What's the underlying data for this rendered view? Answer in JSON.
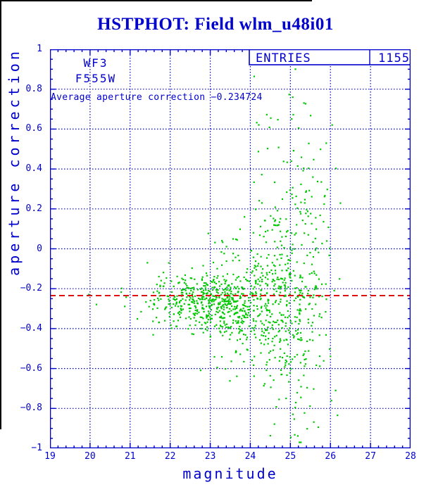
{
  "title": "HSTPHOT: Field wlm_u48i01",
  "annotations": {
    "camera": "WF3",
    "filter": "F555W",
    "average_text": "Average aperture correction −0.234724"
  },
  "entries_box": {
    "label": "ENTRIES",
    "value": "1155"
  },
  "colors": {
    "axis_blue": "#0000cd",
    "point_green": "#00c800",
    "mean_red": "#e01010",
    "scan_border_black": "#000000",
    "background": "#ffffff"
  },
  "chart_data": {
    "type": "scatter",
    "title": "HSTPHOT: Field wlm_u48i01",
    "xlabel": "magnitude",
    "ylabel": "aperture correction",
    "xlim": [
      19,
      28
    ],
    "ylim": [
      -1,
      1
    ],
    "grid": true,
    "x_tick_labels": [
      "19",
      "20",
      "21",
      "22",
      "23",
      "24",
      "25",
      "26",
      "27",
      "28"
    ],
    "y_tick_labels": [
      "1",
      "0.8",
      "0.6",
      "0.4",
      "0.2",
      "0",
      "−0.2",
      "−0.4",
      "−0.6",
      "−0.8",
      "−1"
    ],
    "x_major_step": 1,
    "x_minor_step": 0.2,
    "y_major_step": 0.2,
    "y_minor_step": 0.05,
    "n_points": 1155,
    "entries": 1155,
    "mean_line": {
      "value": -0.234724,
      "style": "dashed"
    },
    "points_spec": {
      "comment": "1155 green points; dense core near corr -0.27 at mag 22-24, vertical spread growing to +/-0.9 by mag 25-26, sparse bright tail to mag 19.5",
      "seed": 987654,
      "marker_px": 2.2,
      "components": [
        {
          "name": "bright-sparse",
          "n": 40,
          "x": {
            "dist": "neg-half-normal",
            "mu": 22.35,
            "sd": 0.85,
            "min": 19.4,
            "max": 22.35
          },
          "y": {
            "dist": "normal",
            "mu": -0.25,
            "sd": 0.07,
            "min": -0.5,
            "max": 0.05
          }
        },
        {
          "name": "core",
          "n": 430,
          "x": {
            "dist": "normal",
            "mu": 23.0,
            "sd": 0.62,
            "min": 21.3,
            "max": 24.8
          },
          "y": {
            "dist": "normal",
            "mu": -0.27,
            "sd": 0.07,
            "min": -0.6,
            "max": 0.1
          }
        },
        {
          "name": "mid",
          "n": 370,
          "x": {
            "dist": "normal",
            "mu": 24.25,
            "sd": 0.7,
            "min": 22.2,
            "max": 25.9
          },
          "y": {
            "dist": "normal",
            "mu": -0.27,
            "sd": 0.16,
            "min": -0.85,
            "max": 0.35
          }
        },
        {
          "name": "faint-wide",
          "n": 315,
          "x": {
            "dist": "normal",
            "mu": 25.15,
            "sd": 0.5,
            "min": 23.5,
            "max": 26.25
          },
          "y": {
            "dist": "normal",
            "mu": -0.15,
            "sd": 0.42,
            "min": -0.97,
            "max": 0.9
          }
        }
      ]
    }
  }
}
